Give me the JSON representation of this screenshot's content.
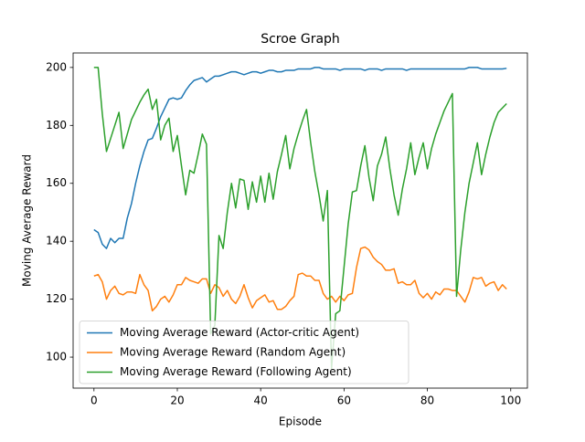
{
  "chart_data": {
    "type": "line",
    "title": "Scroe Graph",
    "x_label": "Episode",
    "y_label": "Moving Average Reward",
    "x": [
      0,
      1,
      2,
      3,
      4,
      5,
      6,
      7,
      8,
      9,
      10,
      11,
      12,
      13,
      14,
      15,
      16,
      17,
      18,
      19,
      20,
      21,
      22,
      23,
      24,
      25,
      26,
      27,
      28,
      29,
      30,
      31,
      32,
      33,
      34,
      35,
      36,
      37,
      38,
      39,
      40,
      41,
      42,
      43,
      44,
      45,
      46,
      47,
      48,
      49,
      50,
      51,
      52,
      53,
      54,
      55,
      56,
      57,
      58,
      59,
      60,
      61,
      62,
      63,
      64,
      65,
      66,
      67,
      68,
      69,
      70,
      71,
      72,
      73,
      74,
      75,
      76,
      77,
      78,
      79,
      80,
      81,
      82,
      83,
      84,
      85,
      86,
      87,
      88,
      89,
      90,
      91,
      92,
      93,
      94,
      95,
      96,
      97,
      98,
      99
    ],
    "series": [
      {
        "name": "Moving Average Reward (Actor-critic Agent)",
        "color": "#1f77b4",
        "values": [
          144,
          143,
          139,
          137.5,
          141,
          139.5,
          141,
          141,
          148,
          153,
          160,
          166,
          171,
          175,
          175.5,
          179,
          183,
          186,
          189,
          189.5,
          189,
          189.5,
          192,
          194,
          195.5,
          196,
          196.5,
          195,
          196,
          197,
          197,
          197.5,
          198,
          198.5,
          198.5,
          198,
          197.5,
          198,
          198.5,
          198.5,
          198,
          198.5,
          199,
          199,
          198.5,
          198.5,
          199,
          199,
          199,
          199.5,
          199.5,
          199.5,
          199.5,
          200,
          200,
          199.5,
          199.5,
          199.5,
          199.5,
          199,
          199.5,
          199.5,
          199.5,
          199.5,
          199.5,
          199,
          199.5,
          199.5,
          199.5,
          199,
          199.5,
          199.5,
          199.5,
          199.5,
          199.5,
          199,
          199.5,
          199.5,
          199.5,
          199.5,
          199.5,
          199.5,
          199.5,
          199.5,
          199.5,
          199.5,
          199.5,
          199.5,
          199.5,
          199.5,
          200,
          200,
          200,
          199.5,
          199.5,
          199.5,
          199.5,
          199.5,
          199.5,
          199.7
        ]
      },
      {
        "name": "Moving Average Reward (Random Agent)",
        "color": "#ff7f0e",
        "values": [
          128,
          128.5,
          126,
          120,
          123,
          124.5,
          122,
          121.5,
          122.5,
          122.5,
          122,
          128.5,
          125,
          123,
          116,
          117.5,
          120,
          121,
          119,
          121.5,
          125,
          125,
          127.5,
          126.5,
          126,
          125.5,
          127,
          127,
          122,
          125,
          124,
          121,
          123,
          120,
          118.5,
          121,
          125,
          120.5,
          117,
          119.5,
          120.5,
          121.5,
          119,
          119.5,
          116.5,
          116.5,
          117.5,
          119.5,
          121,
          128.5,
          129,
          128,
          128,
          126.5,
          126.5,
          122,
          120,
          121,
          119,
          121,
          119.5,
          121.5,
          122,
          131,
          137.5,
          138,
          137,
          134.5,
          133,
          132,
          130,
          130,
          130.5,
          125.5,
          126,
          125,
          125,
          126.5,
          122,
          120.5,
          122,
          120,
          122.5,
          121.5,
          123.5,
          123.5,
          123,
          123,
          121,
          119,
          122.5,
          127.5,
          127,
          127.5,
          124.5,
          125.5,
          126,
          123,
          125,
          123.5
        ]
      },
      {
        "name": "Moving Average Reward (Following Agent)",
        "color": "#2ca02c",
        "values": [
          200,
          200,
          184,
          171,
          175.5,
          180,
          184.5,
          172,
          177,
          182,
          185,
          188,
          190.5,
          192.5,
          185.5,
          189,
          175,
          180,
          182.5,
          171,
          176.5,
          166,
          156,
          164.5,
          163.5,
          170,
          177,
          173.5,
          108,
          111,
          142,
          137.5,
          150,
          160,
          151.5,
          161.5,
          161,
          151,
          160.5,
          153.5,
          162.5,
          153.5,
          163.5,
          154.5,
          164,
          170,
          176.5,
          165,
          172,
          177,
          181.5,
          185.5,
          174,
          164,
          156,
          147,
          157.5,
          96,
          115,
          116,
          131,
          146,
          157,
          157.5,
          166,
          173,
          162,
          154,
          166,
          170,
          176,
          165,
          156,
          149,
          158,
          165,
          174,
          163,
          169,
          174,
          165,
          172,
          177,
          181,
          185,
          188,
          191,
          121,
          137,
          150,
          160,
          167,
          174,
          163,
          170,
          176,
          181,
          184.5,
          186,
          187.5
        ]
      }
    ],
    "xlim": [
      -5,
      104
    ],
    "ylim": [
      89.3,
      205
    ],
    "xticks": [
      0,
      20,
      40,
      60,
      80,
      100
    ],
    "yticks": [
      100,
      120,
      140,
      160,
      180,
      200
    ],
    "legend": "lower left"
  }
}
